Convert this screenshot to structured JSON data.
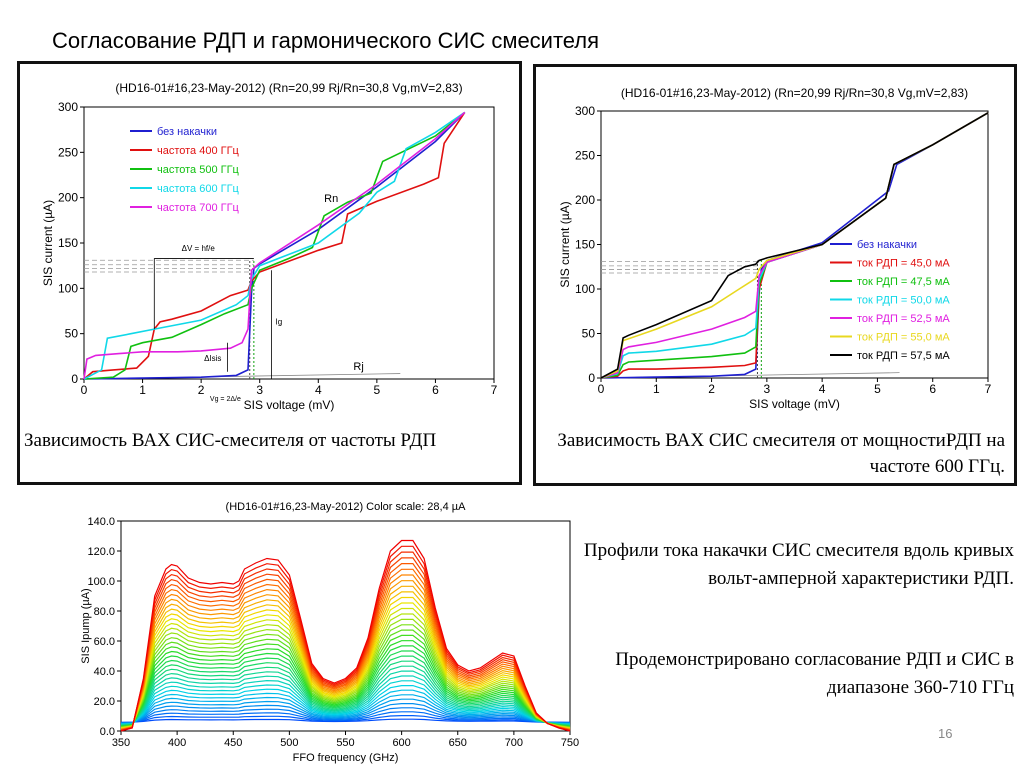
{
  "slide": {
    "title": "Согласование РДП и гармонического СИС смесителя",
    "caption_left": "Зависимость ВАХ СИС-смесителя от частоты РДП",
    "caption_right": "Зависимость ВАХ СИС смесителя от мощностиРДП на частоте 600 ГГц.",
    "note_profiles": "Профили тока накачки СИС смесителя вдоль кривых вольт-амперной характеристики РДП.",
    "note_range": "Продемонстрировано согласование РДП и СИС в диапазоне 360-710 ГГц",
    "page_number": "16"
  },
  "chart_data": [
    {
      "type": "line",
      "title": "(HD16-01#16,23-May-2012) (Rn=20,99 Rj/Rn=30,8 Vg,mV=2,83)",
      "xlabel": "SIS voltage (mV)",
      "ylabel": "SIS current (µA)",
      "xlim": [
        0,
        7
      ],
      "ylim": [
        0,
        300
      ],
      "xticks": [
        "0",
        "1",
        "2",
        "3",
        "4",
        "5",
        "6",
        "7"
      ],
      "yticks": [
        "0",
        "50",
        "100",
        "150",
        "200",
        "250",
        "300"
      ],
      "legend_position": "top-left",
      "annotations": [
        "ΔV = hf/e",
        "Rn",
        "Rj",
        "Ig",
        "ΔIsis",
        "Vg = 2Δ/e"
      ],
      "series": [
        {
          "name": "без накачки",
          "color": "#1f1fd0",
          "x": [
            0,
            1,
            2,
            2.6,
            2.8,
            2.86,
            2.9,
            3,
            4,
            5,
            6,
            6.5
          ],
          "y": [
            0,
            1,
            2,
            4,
            10,
            95,
            122,
            127,
            165,
            212,
            262,
            294
          ]
        },
        {
          "name": "частота  400 ГГц",
          "color": "#e01010",
          "x": [
            0,
            0.15,
            0.5,
            0.9,
            1.1,
            1.2,
            1.3,
            1.5,
            2,
            2.5,
            2.8,
            2.86,
            3,
            4,
            4.4,
            4.5,
            5,
            5.8,
            6.05,
            6.15,
            6.5
          ],
          "y": [
            0,
            8,
            10,
            12,
            25,
            55,
            63,
            66,
            75,
            92,
            98,
            108,
            118,
            142,
            150,
            182,
            196,
            215,
            222,
            260,
            294
          ]
        },
        {
          "name": "частота  500 ГГц",
          "color": "#10c010",
          "x": [
            0,
            0.5,
            0.7,
            0.8,
            1,
            1.5,
            2,
            2.4,
            2.8,
            2.86,
            3,
            3.5,
            3.9,
            4.1,
            4.5,
            4.9,
            5.1,
            6,
            6.5
          ],
          "y": [
            0,
            2,
            10,
            36,
            40,
            46,
            60,
            72,
            82,
            100,
            120,
            133,
            145,
            180,
            195,
            205,
            240,
            268,
            294
          ]
        },
        {
          "name": "частота  600 ГГц",
          "color": "#10d8e8",
          "x": [
            0,
            0.3,
            0.4,
            0.8,
            1.2,
            2,
            2.6,
            2.8,
            2.86,
            3,
            4,
            4.7,
            5,
            5.3,
            5.5,
            6,
            6.5
          ],
          "y": [
            0,
            10,
            45,
            50,
            55,
            65,
            82,
            92,
            110,
            125,
            150,
            183,
            206,
            218,
            254,
            272,
            294
          ]
        },
        {
          "name": "частота  700 ГГц",
          "color": "#e020e0",
          "x": [
            0,
            0.05,
            0.2,
            0.6,
            1,
            1.6,
            2,
            2.5,
            2.7,
            2.8,
            2.86,
            3,
            4,
            5,
            6,
            6.5
          ],
          "y": [
            0,
            22,
            26,
            28,
            30,
            30,
            31,
            34,
            40,
            55,
            120,
            128,
            170,
            215,
            265,
            294
          ]
        }
      ]
    },
    {
      "type": "line",
      "title": "(HD16-01#16,23-May-2012) (Rn=20,99 Rj/Rn=30,8 Vg,mV=2,83)",
      "xlabel": "SIS voltage (mV)",
      "ylabel": "SIS current (µA)",
      "xlim": [
        0,
        7
      ],
      "ylim": [
        0,
        300
      ],
      "xticks": [
        "0",
        "1",
        "2",
        "3",
        "4",
        "5",
        "6",
        "7"
      ],
      "yticks": [
        "0",
        "50",
        "100",
        "150",
        "200",
        "250",
        "300"
      ],
      "legend_position": "bottom-right",
      "series": [
        {
          "name": "без накачки",
          "color": "#1f1fd0",
          "x": [
            0,
            1,
            2,
            2.6,
            2.8,
            2.86,
            2.9,
            3,
            4,
            5.2,
            5.35,
            6,
            7
          ],
          "y": [
            0,
            1,
            2,
            4,
            10,
            95,
            122,
            132,
            152,
            210,
            240,
            262,
            298
          ]
        },
        {
          "name": "ток РДП = 45,0 мА",
          "color": "#e01010",
          "x": [
            0,
            0.3,
            0.4,
            0.5,
            1,
            2,
            2.6,
            2.8,
            2.86,
            3,
            4,
            5.15,
            5.3,
            6,
            7
          ],
          "y": [
            0,
            2,
            8,
            10,
            10,
            12,
            14,
            17,
            100,
            130,
            150,
            202,
            240,
            262,
            298
          ]
        },
        {
          "name": "ток РДП = 47,5 мА",
          "color": "#10c010",
          "x": [
            0,
            0.3,
            0.4,
            0.5,
            1,
            2,
            2.6,
            2.8,
            2.86,
            3,
            4,
            5.15,
            5.3,
            6,
            7
          ],
          "y": [
            0,
            3,
            15,
            18,
            20,
            24,
            28,
            35,
            105,
            130,
            150,
            202,
            240,
            262,
            298
          ]
        },
        {
          "name": "ток РДП = 50,0 мА",
          "color": "#10d8e8",
          "x": [
            0,
            0.3,
            0.4,
            0.5,
            1,
            2,
            2.6,
            2.8,
            2.86,
            3,
            4,
            5.15,
            5.3,
            6,
            7
          ],
          "y": [
            0,
            5,
            25,
            28,
            30,
            38,
            48,
            56,
            110,
            130,
            150,
            202,
            240,
            262,
            298
          ]
        },
        {
          "name": "ток РДП = 52,5 мА",
          "color": "#e020e0",
          "x": [
            0,
            0.3,
            0.4,
            0.5,
            1,
            2,
            2.6,
            2.8,
            2.86,
            3,
            4,
            5.15,
            5.3,
            6,
            7
          ],
          "y": [
            0,
            6,
            32,
            35,
            40,
            55,
            68,
            75,
            115,
            130,
            150,
            202,
            240,
            262,
            298
          ]
        },
        {
          "name": "ток РДП = 55,0 мА",
          "color": "#e8d820",
          "x": [
            0,
            0.3,
            0.4,
            0.5,
            1,
            2,
            2.5,
            2.7,
            2.8,
            2.86,
            3,
            4,
            5.15,
            5.3,
            6,
            7
          ],
          "y": [
            0,
            8,
            42,
            44,
            55,
            80,
            100,
            108,
            112,
            122,
            132,
            150,
            202,
            240,
            262,
            298
          ]
        },
        {
          "name": "ток РДП = 57,5 мА",
          "color": "#000000",
          "x": [
            0,
            0.3,
            0.4,
            0.5,
            1,
            2,
            2.3,
            2.6,
            2.8,
            2.86,
            3,
            4,
            5.15,
            5.3,
            6,
            7
          ],
          "y": [
            0,
            10,
            45,
            48,
            60,
            87,
            115,
            125,
            128,
            132,
            135,
            150,
            202,
            240,
            262,
            298
          ]
        }
      ]
    },
    {
      "type": "line",
      "title": "(HD16-01#16,23-May-2012) Color scale: 28,4 µA",
      "xlabel": "FFO frequency (GHz)",
      "ylabel": "SIS Ipump (µA)",
      "xlim": [
        350,
        750
      ],
      "ylim": [
        0,
        140
      ],
      "xticks": [
        "350",
        "400",
        "450",
        "500",
        "550",
        "600",
        "650",
        "700",
        "750"
      ],
      "yticks": [
        "0.0",
        "20.0",
        "40.0",
        "60.0",
        "80.0",
        "100.0",
        "120.0",
        "140.0"
      ],
      "profile_scale": {
        "levels": 36,
        "color_map": "blue-cyan-green-yellow-red"
      },
      "envelope": {
        "x": [
          350,
          360,
          370,
          380,
          390,
          395,
          400,
          410,
          420,
          430,
          440,
          450,
          455,
          460,
          470,
          480,
          490,
          500,
          510,
          520,
          530,
          540,
          550,
          560,
          570,
          580,
          590,
          600,
          610,
          620,
          630,
          640,
          650,
          660,
          670,
          680,
          690,
          700,
          710,
          720,
          730,
          740,
          750
        ],
        "y": [
          0,
          2,
          35,
          90,
          108,
          111,
          110,
          102,
          99,
          98,
          99,
          98,
          100,
          108,
          112,
          115,
          114,
          104,
          75,
          45,
          35,
          32,
          35,
          42,
          62,
          95,
          120,
          127,
          127,
          115,
          82,
          55,
          44,
          40,
          42,
          47,
          52,
          50,
          30,
          12,
          5,
          2,
          0
        ]
      }
    }
  ]
}
